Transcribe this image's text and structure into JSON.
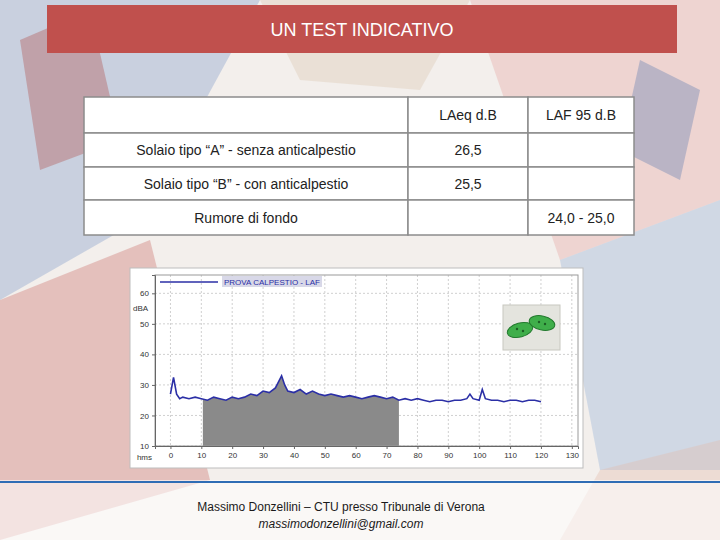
{
  "header": {
    "title": "UN TEST INDICATIVO"
  },
  "table": {
    "header": [
      null,
      "LAeq d.B",
      "LAF 95 d.B"
    ],
    "rows": [
      [
        "Solaio tipo “A” - senza anticalpestio",
        "26,5",
        null
      ],
      [
        "Solaio tipo “B” - con anticalpestio",
        "25,5",
        null
      ],
      [
        "Rumore di fondo",
        null,
        "24,0 - 25,0"
      ]
    ]
  },
  "chart_data": {
    "type": "line",
    "x_label": "hms",
    "y_label": "dBA",
    "x": [
      0,
      1,
      2,
      3,
      4,
      6,
      8,
      10,
      12,
      14,
      16,
      18,
      20,
      22,
      24,
      26,
      28,
      30,
      32,
      34,
      35,
      36,
      37,
      38,
      40,
      42,
      44,
      46,
      48,
      50,
      52,
      54,
      56,
      58,
      60,
      62,
      64,
      66,
      68,
      70,
      72,
      74,
      76,
      78,
      80,
      82,
      84,
      86,
      88,
      90,
      92,
      94,
      96,
      97,
      98,
      100,
      101,
      102,
      104,
      106,
      108,
      110,
      112,
      114,
      116,
      118,
      120
    ],
    "series": [
      {
        "name": "PROVA CALPESTIO - LAF",
        "color": "#2b2fa6",
        "values": [
          27,
          32.5,
          27,
          25.5,
          26,
          25.5,
          26,
          25.5,
          25,
          26,
          25.5,
          25,
          26,
          25.5,
          26,
          27,
          26.5,
          28,
          27.5,
          29,
          31,
          33,
          30,
          28,
          27.5,
          28.5,
          27,
          28,
          27,
          26.5,
          27,
          26.5,
          26,
          26.5,
          26,
          25.5,
          26,
          26.5,
          26,
          25.5,
          26,
          25,
          25.5,
          25,
          25.5,
          25,
          24.5,
          25,
          25,
          24.5,
          25,
          25,
          25.5,
          27,
          25.5,
          25,
          28.5,
          25.5,
          25,
          25,
          24.5,
          25,
          25,
          24.5,
          25,
          25,
          24.5
        ]
      }
    ],
    "shaded_range": [
      10.5,
      74
    ],
    "xlim": [
      -5,
      132
    ],
    "xticks": [
      0,
      10,
      20,
      30,
      40,
      50,
      60,
      70,
      80,
      90,
      100,
      110,
      120,
      130
    ],
    "ylim": [
      10,
      66
    ],
    "yticks": [
      10,
      20,
      30,
      40,
      50,
      60
    ],
    "grid": true,
    "legend": "top-left"
  },
  "footer": {
    "author": "Massimo Donzellini – CTU presso Tribunale di Verona",
    "email": "massimodonzellini@gmail.com"
  }
}
